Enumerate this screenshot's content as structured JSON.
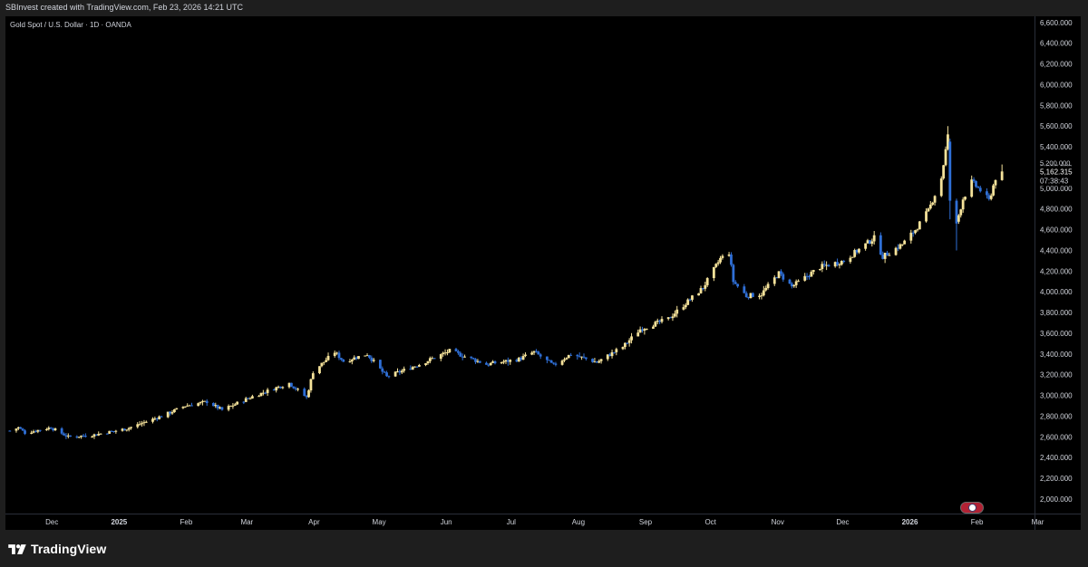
{
  "header": {
    "attribution": "SBInvest created with TradingView.com, Feb 23, 2026 14:21 UTC"
  },
  "chart": {
    "symbol_title": "Gold Spot / U.S. Dollar · 1D · OANDA",
    "last_price_label": "5,162.315",
    "countdown_label": "07:38:43",
    "partial_label": "5,200.000"
  },
  "footer": {
    "logo_text": "TradingView",
    "logo_icon": "tradingview-logo-icon"
  },
  "colors": {
    "background": "#000000",
    "up_candle": "#f5e29a",
    "down_candle": "#2f6fd6",
    "axis_text": "#d1d4dc",
    "frame": "#1e1e1e"
  },
  "chart_data": {
    "type": "candlestick",
    "title": "Gold Spot / U.S. Dollar · 1D · OANDA",
    "x_tick_labels": [
      "Dec",
      "2025",
      "Feb",
      "Mar",
      "Apr",
      "May",
      "Jun",
      "Jul",
      "Aug",
      "Sep",
      "Oct",
      "Nov",
      "Dec",
      "2026",
      "Feb",
      "Mar"
    ],
    "y_tick_labels": [
      "6,600.000",
      "6,400.000",
      "6,200.000",
      "6,000.000",
      "5,800.000",
      "5,600.000",
      "5,400.000",
      "5,200.000",
      "5,000.000",
      "4,800.000",
      "4,600.000",
      "4,400.000",
      "4,200.000",
      "4,000.000",
      "3,800.000",
      "3,600.000",
      "3,400.000",
      "3,200.000",
      "3,000.000",
      "2,800.000",
      "2,600.000",
      "2,400.000",
      "2,200.000",
      "2,000.000"
    ],
    "ylim": [
      1860,
      6660
    ],
    "x_range": [
      "2024-11-20",
      "2026-03-10"
    ],
    "last_price": 5162.315,
    "series": [
      {
        "name": "XAUUSD",
        "points": [
          [
            "2024-11-22",
            2660
          ],
          [
            "2024-11-26",
            2690
          ],
          [
            "2024-11-29",
            2640
          ],
          [
            "2024-12-11",
            2690
          ],
          [
            "2024-12-19",
            2600
          ],
          [
            "2024-12-31",
            2620
          ],
          [
            "2025-01-15",
            2680
          ],
          [
            "2025-01-31",
            2800
          ],
          [
            "2025-02-11",
            2900
          ],
          [
            "2025-02-21",
            2940
          ],
          [
            "2025-02-28",
            2860
          ],
          [
            "2025-03-14",
            2990
          ],
          [
            "2025-03-31",
            3120
          ],
          [
            "2025-04-08",
            2980
          ],
          [
            "2025-04-11",
            3230
          ],
          [
            "2025-04-21",
            3420
          ],
          [
            "2025-04-25",
            3330
          ],
          [
            "2025-05-06",
            3400
          ],
          [
            "2025-05-15",
            3180
          ],
          [
            "2025-05-30",
            3300
          ],
          [
            "2025-06-13",
            3430
          ],
          [
            "2025-06-30",
            3300
          ],
          [
            "2025-07-15",
            3350
          ],
          [
            "2025-07-22",
            3420
          ],
          [
            "2025-07-31",
            3290
          ],
          [
            "2025-08-08",
            3400
          ],
          [
            "2025-08-20",
            3320
          ],
          [
            "2025-09-01",
            3470
          ],
          [
            "2025-09-09",
            3640
          ],
          [
            "2025-09-22",
            3740
          ],
          [
            "2025-10-08",
            4040
          ],
          [
            "2025-10-16",
            4320
          ],
          [
            "2025-10-20",
            4380
          ],
          [
            "2025-10-22",
            4100
          ],
          [
            "2025-10-28",
            3960
          ],
          [
            "2025-11-04",
            3980
          ],
          [
            "2025-11-12",
            4180
          ],
          [
            "2025-11-18",
            4050
          ],
          [
            "2025-12-01",
            4240
          ],
          [
            "2025-12-12",
            4300
          ],
          [
            "2025-12-26",
            4520
          ],
          [
            "2025-12-30",
            4340
          ],
          [
            "2026-01-08",
            4460
          ],
          [
            "2026-01-14",
            4600
          ],
          [
            "2026-01-20",
            4780
          ],
          [
            "2026-01-26",
            5100
          ],
          [
            "2026-01-29",
            5500
          ],
          [
            "2026-01-30",
            4800
          ],
          [
            "2026-02-02",
            4660
          ],
          [
            "2026-02-05",
            4900
          ],
          [
            "2026-02-09",
            5060
          ],
          [
            "2026-02-13",
            4980
          ],
          [
            "2026-02-17",
            4880
          ],
          [
            "2026-02-20",
            5100
          ],
          [
            "2026-02-23",
            5162.315
          ]
        ]
      }
    ],
    "grid": false,
    "legend": "none"
  }
}
